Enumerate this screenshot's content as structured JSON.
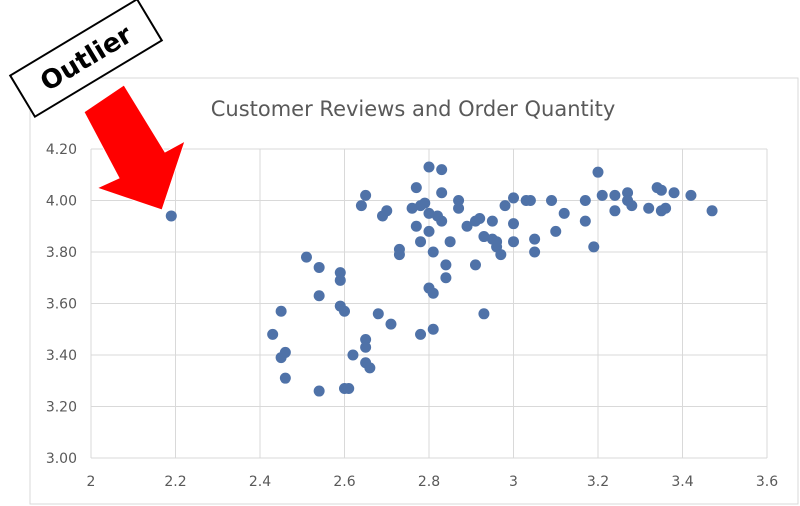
{
  "callout": {
    "label": "Outlier",
    "arrow_color": "#ff0000"
  },
  "chart_data": {
    "type": "scatter",
    "title": "Customer Reviews and Order Quantity",
    "xlabel": "",
    "ylabel": "",
    "xlim": [
      2,
      3.6
    ],
    "ylim": [
      3.0,
      4.2
    ],
    "x_ticks": [
      "2",
      "2.2",
      "2.4",
      "2.6",
      "2.8",
      "3",
      "3.2",
      "3.4",
      "3.6"
    ],
    "y_ticks": [
      "3.00",
      "3.20",
      "3.40",
      "3.60",
      "3.80",
      "4.00",
      "4.20"
    ],
    "grid": true,
    "marker_color": "#4f72a8",
    "series": [
      {
        "points": [
          [
            2.19,
            3.94
          ],
          [
            2.43,
            3.48
          ],
          [
            2.45,
            3.57
          ],
          [
            2.45,
            3.39
          ],
          [
            2.46,
            3.41
          ],
          [
            2.46,
            3.31
          ],
          [
            2.51,
            3.78
          ],
          [
            2.54,
            3.74
          ],
          [
            2.54,
            3.63
          ],
          [
            2.54,
            3.26
          ],
          [
            2.59,
            3.72
          ],
          [
            2.59,
            3.69
          ],
          [
            2.59,
            3.59
          ],
          [
            2.6,
            3.57
          ],
          [
            2.6,
            3.27
          ],
          [
            2.61,
            3.27
          ],
          [
            2.62,
            3.4
          ],
          [
            2.64,
            3.98
          ],
          [
            2.65,
            4.02
          ],
          [
            2.65,
            3.46
          ],
          [
            2.65,
            3.43
          ],
          [
            2.65,
            3.37
          ],
          [
            2.66,
            3.35
          ],
          [
            2.68,
            3.56
          ],
          [
            2.69,
            3.94
          ],
          [
            2.7,
            3.96
          ],
          [
            2.71,
            3.52
          ],
          [
            2.73,
            3.81
          ],
          [
            2.73,
            3.79
          ],
          [
            2.76,
            3.97
          ],
          [
            2.77,
            4.05
          ],
          [
            2.77,
            3.9
          ],
          [
            2.78,
            3.98
          ],
          [
            2.78,
            3.84
          ],
          [
            2.78,
            3.48
          ],
          [
            2.79,
            3.99
          ],
          [
            2.8,
            3.95
          ],
          [
            2.8,
            4.13
          ],
          [
            2.8,
            3.88
          ],
          [
            2.8,
            3.66
          ],
          [
            2.81,
            3.64
          ],
          [
            2.81,
            3.5
          ],
          [
            2.81,
            3.8
          ],
          [
            2.82,
            3.94
          ],
          [
            2.83,
            4.12
          ],
          [
            2.83,
            4.03
          ],
          [
            2.83,
            3.92
          ],
          [
            2.84,
            3.75
          ],
          [
            2.84,
            3.7
          ],
          [
            2.85,
            3.84
          ],
          [
            2.87,
            4.0
          ],
          [
            2.87,
            3.97
          ],
          [
            2.89,
            3.9
          ],
          [
            2.91,
            3.75
          ],
          [
            2.91,
            3.92
          ],
          [
            2.92,
            3.93
          ],
          [
            2.93,
            3.86
          ],
          [
            2.93,
            3.56
          ],
          [
            2.95,
            3.92
          ],
          [
            2.95,
            3.85
          ],
          [
            2.96,
            3.82
          ],
          [
            2.96,
            3.84
          ],
          [
            2.97,
            3.79
          ],
          [
            2.98,
            3.98
          ],
          [
            3.0,
            4.01
          ],
          [
            3.0,
            3.91
          ],
          [
            3.0,
            3.84
          ],
          [
            3.03,
            4.0
          ],
          [
            3.04,
            4.0
          ],
          [
            3.05,
            3.85
          ],
          [
            3.05,
            3.8
          ],
          [
            3.09,
            4.0
          ],
          [
            3.1,
            3.88
          ],
          [
            3.12,
            3.95
          ],
          [
            3.17,
            4.0
          ],
          [
            3.17,
            3.92
          ],
          [
            3.19,
            3.82
          ],
          [
            3.2,
            4.11
          ],
          [
            3.21,
            4.02
          ],
          [
            3.24,
            4.02
          ],
          [
            3.24,
            3.96
          ],
          [
            3.27,
            4.03
          ],
          [
            3.27,
            4.0
          ],
          [
            3.28,
            3.98
          ],
          [
            3.32,
            3.97
          ],
          [
            3.34,
            4.05
          ],
          [
            3.35,
            4.04
          ],
          [
            3.35,
            3.96
          ],
          [
            3.36,
            3.97
          ],
          [
            3.38,
            4.03
          ],
          [
            3.42,
            4.02
          ],
          [
            3.47,
            3.96
          ]
        ]
      }
    ]
  }
}
